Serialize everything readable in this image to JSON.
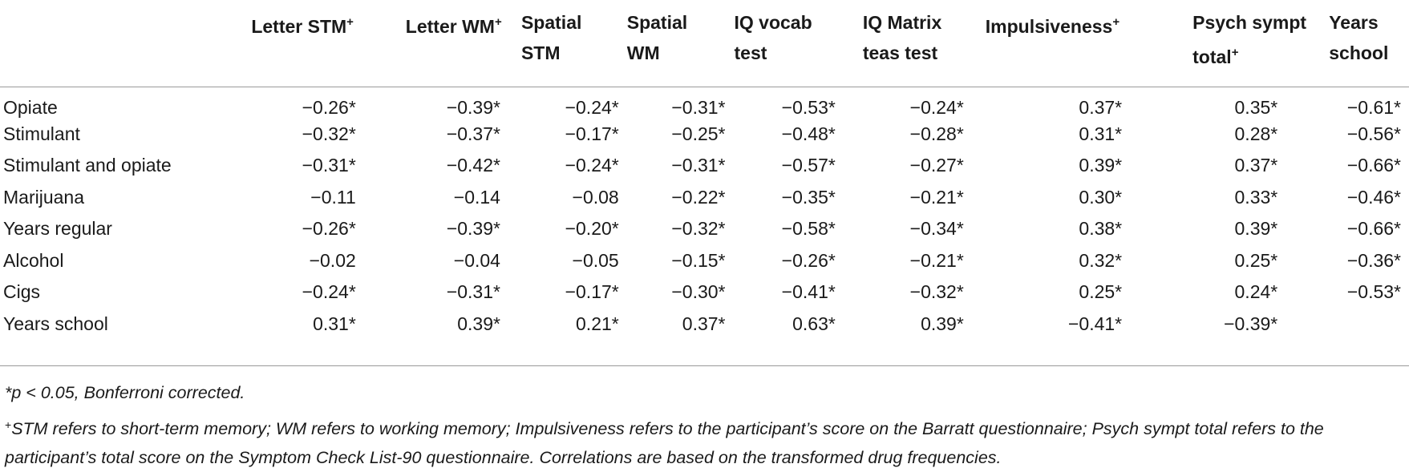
{
  "table": {
    "headers": [
      {
        "line1": "Letter STM",
        "line2": "",
        "sup": "+"
      },
      {
        "line1": "Letter WM",
        "line2": "",
        "sup": "+"
      },
      {
        "line1": "Spatial",
        "line2": "STM",
        "sup": ""
      },
      {
        "line1": "Spatial",
        "line2": "WM",
        "sup": ""
      },
      {
        "line1": "IQ vocab",
        "line2": "test",
        "sup": ""
      },
      {
        "line1": "IQ Matrix",
        "line2": "teas test",
        "sup": ""
      },
      {
        "line1": "Impulsiveness",
        "line2": "",
        "sup": "+"
      },
      {
        "line1": "Psych sympt",
        "line2": "total",
        "sup": "+"
      },
      {
        "line1": "Years",
        "line2": "school",
        "sup": ""
      }
    ],
    "rows": [
      {
        "label": "Opiate",
        "values": [
          "−0.26*",
          "−0.39*",
          "−0.24*",
          "−0.31*",
          "−0.53*",
          "−0.24*",
          "0.37*",
          "0.35*",
          "−0.61*"
        ]
      },
      {
        "label": "Stimulant",
        "values": [
          "−0.32*",
          "−0.37*",
          "−0.17*",
          "−0.25*",
          "−0.48*",
          "−0.28*",
          "0.31*",
          "0.28*",
          "−0.56*"
        ]
      },
      {
        "label": "Stimulant and opiate",
        "values": [
          "−0.31*",
          "−0.42*",
          "−0.24*",
          "−0.31*",
          "−0.57*",
          "−0.27*",
          "0.39*",
          "0.37*",
          "−0.66*"
        ]
      },
      {
        "label": "Marijuana",
        "values": [
          "−0.11",
          "−0.14",
          "−0.08",
          "−0.22*",
          "−0.35*",
          "−0.21*",
          "0.30*",
          "0.33*",
          "−0.46*"
        ]
      },
      {
        "label": "Years regular",
        "values": [
          "−0.26*",
          "−0.39*",
          "−0.20*",
          "−0.32*",
          "−0.58*",
          "−0.34*",
          "0.38*",
          "0.39*",
          "−0.66*"
        ]
      },
      {
        "label": "Alcohol",
        "values": [
          "−0.02",
          "−0.04",
          "−0.05",
          "−0.15*",
          "−0.26*",
          "−0.21*",
          "0.32*",
          "0.25*",
          "−0.36*"
        ]
      },
      {
        "label": "Cigs",
        "values": [
          "−0.24*",
          "−0.31*",
          "−0.17*",
          "−0.30*",
          "−0.41*",
          "−0.32*",
          "0.25*",
          "0.24*",
          "−0.53*"
        ]
      },
      {
        "label": "Years school",
        "values": [
          "0.31*",
          "0.39*",
          "0.21*",
          "0.37*",
          "0.63*",
          "0.39*",
          "−0.41*",
          "−0.39*",
          ""
        ]
      }
    ]
  },
  "footnotes": {
    "note1": "*p < 0.05, Bonferroni corrected.",
    "note2_mark": "+",
    "note2": "STM refers to short-term memory; WM refers to working memory; Impulsiveness refers to the participant’s score on the Barratt questionnaire; Psych sympt total refers to the participant’s total score on the Symptom Check List-90 questionnaire. Correlations are based on the transformed drug frequencies."
  }
}
